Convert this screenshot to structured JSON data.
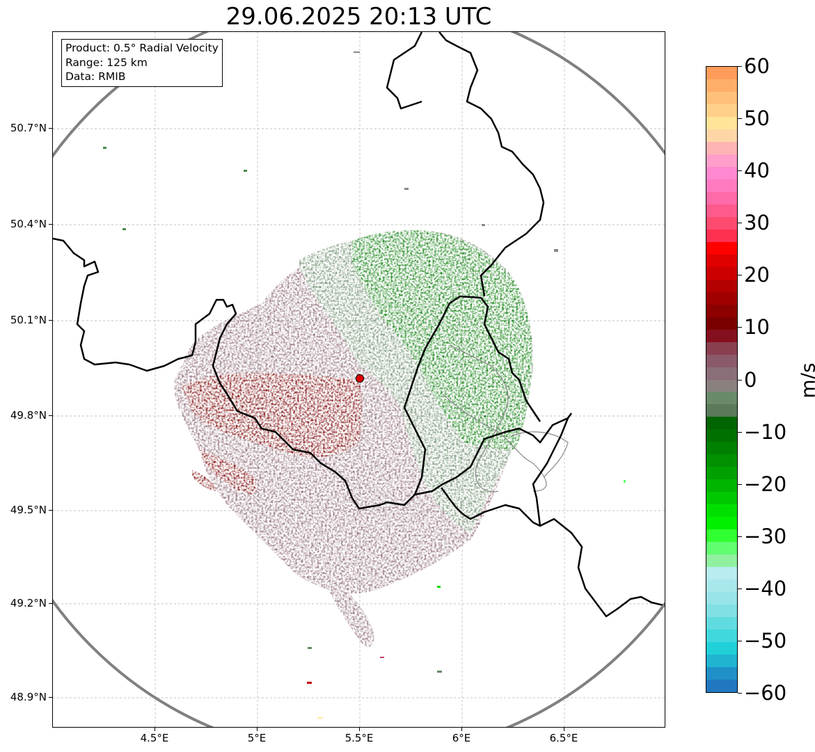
{
  "title": "29.06.2025 20:13 UTC",
  "info": {
    "product": "Product: 0.5° Radial Velocity",
    "range": "Range: 125 km",
    "data": "Data: RMIB"
  },
  "axes": {
    "lat_ticks": [
      "50.7°N",
      "50.4°N",
      "50.1°N",
      "49.8°N",
      "49.5°N",
      "49.2°N",
      "48.9°N"
    ],
    "lon_ticks": [
      "4.5°E",
      "5°E",
      "5.5°E",
      "6°E",
      "6.5°E"
    ]
  },
  "colorbar": {
    "unit": "m/s",
    "ticks": [
      "60",
      "50",
      "40",
      "30",
      "20",
      "10",
      "0",
      "−10",
      "−20",
      "−30",
      "−40",
      "−50",
      "−60"
    ],
    "range": [
      -60,
      60
    ],
    "colors": [
      "#ff9c5a",
      "#ffae6a",
      "#ffc07a",
      "#ffd08a",
      "#ffe49a",
      "#ffd6a6",
      "#ffb4b4",
      "#ff9ec8",
      "#ff88d0",
      "#ff7ac0",
      "#ff6aa8",
      "#ff5a8c",
      "#ff4a70",
      "#ff3050",
      "#ff0000",
      "#e00000",
      "#cc0000",
      "#b40000",
      "#a00000",
      "#8c0000",
      "#7a0000",
      "#840f1f",
      "#8a3f4f",
      "#8a5a6a",
      "#8a6e78",
      "#8a8080",
      "#6a8a6a",
      "#5a7a5a",
      "#006400",
      "#007000",
      "#008000",
      "#009000",
      "#00a000",
      "#00b400",
      "#00c800",
      "#00e000",
      "#00f000",
      "#30ff30",
      "#60ff70",
      "#90f0a0",
      "#b8ecf0",
      "#a8e8ec",
      "#98e4e8",
      "#80e0e4",
      "#60dce0",
      "#40d8dc",
      "#20d0d8",
      "#20b4d0",
      "#2090c8",
      "#2078c0"
    ]
  },
  "radar": {
    "site_marker": "radar-site-icon"
  }
}
